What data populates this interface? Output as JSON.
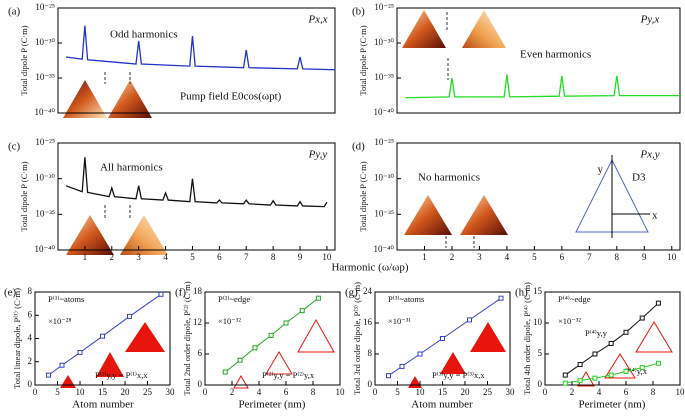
{
  "chart_data": [
    {
      "type": "line",
      "panel": "(a)",
      "title": "Px,x",
      "ylabel": "Total dipole P (C·m)",
      "log_y": true,
      "color": "#2233cc",
      "annotations": [
        "Odd harmonics",
        "Pump field E0cos(ωpt)"
      ],
      "xlim": [
        0,
        10.3
      ],
      "ylim": [
        1e-40,
        1e-25
      ],
      "yticks": [
        {
          "value": 1e-25,
          "label": "10⁻²⁵"
        },
        {
          "value": 1e-30,
          "label": "10⁻³⁰"
        },
        {
          "value": 1e-35,
          "label": "10⁻³⁵"
        },
        {
          "value": 1e-40,
          "label": "10⁻⁴⁰"
        }
      ],
      "x": [
        0.3,
        0.9,
        1,
        1.1,
        2.9,
        3,
        3.1,
        4.9,
        5,
        5.1,
        6.9,
        7,
        7.1,
        8.9,
        9,
        9.1,
        10.3
      ],
      "values": [
        1e-32,
        5e-33,
        3e-28,
        4e-33,
        1e-33,
        2e-30,
        1e-33,
        5e-34,
        1e-29,
        5e-34,
        3e-34,
        1e-31,
        3e-34,
        2e-34,
        1e-32,
        2e-34,
        1.5e-34
      ]
    },
    {
      "type": "line",
      "panel": "(b)",
      "title": "Py,x",
      "ylabel": "Total dipole P (C·m)",
      "log_y": true,
      "color": "#22dd22",
      "annotations": [
        "Even harmonics"
      ],
      "xlim": [
        0,
        10.3
      ],
      "ylim": [
        1e-40,
        1e-25
      ],
      "yticks": [
        {
          "value": 1e-25,
          "label": "10⁻²⁵"
        },
        {
          "value": 1e-30,
          "label": "10⁻³⁰"
        },
        {
          "value": 1e-35,
          "label": "10⁻³⁵"
        },
        {
          "value": 1e-40,
          "label": "10⁻⁴⁰"
        }
      ],
      "x": [
        0.3,
        1.9,
        2,
        2.1,
        3.9,
        4,
        4.1,
        5.9,
        6,
        6.1,
        7.9,
        8,
        8.1,
        10.3
      ],
      "values": [
        1.5e-38,
        2e-38,
        1e-35,
        2e-38,
        2e-38,
        3e-35,
        2e-38,
        2.5e-38,
        2e-35,
        2.5e-38,
        3e-38,
        2e-35,
        3e-38,
        3e-38
      ]
    },
    {
      "type": "line",
      "panel": "(c)",
      "title": "Py,y",
      "ylabel": "Total dipole P (C·m)",
      "xlabel": "Harmonic (ω/ωp)",
      "log_y": true,
      "color": "#111111",
      "annotations": [
        "All harmonics"
      ],
      "xlim": [
        0,
        10.3
      ],
      "ylim": [
        1e-40,
        1e-25
      ],
      "xticks": [
        1,
        2,
        3,
        4,
        5,
        6,
        7,
        8,
        9,
        10
      ],
      "yticks": [
        {
          "value": 1e-25,
          "label": "10⁻²⁵"
        },
        {
          "value": 1e-30,
          "label": "10⁻³⁰"
        },
        {
          "value": 1e-35,
          "label": "10⁻³⁵"
        },
        {
          "value": 1e-40,
          "label": "10⁻⁴⁰"
        }
      ],
      "x": [
        0.3,
        0.9,
        1,
        1.1,
        1.9,
        2,
        2.1,
        2.9,
        3,
        3.1,
        3.9,
        4,
        4.1,
        4.9,
        5,
        5.1,
        5.9,
        6,
        6.1,
        6.9,
        7,
        7.1,
        7.9,
        8,
        8.1,
        8.9,
        9,
        9.1,
        9.9,
        10
      ],
      "values": [
        1e-31,
        1.5e-32,
        1e-27,
        1.2e-32,
        3e-33,
        5e-32,
        3e-33,
        1.5e-33,
        1e-31,
        1.5e-33,
        1e-33,
        1e-32,
        1e-33,
        6e-34,
        1e-30,
        6e-34,
        4e-34,
        1e-33,
        4e-34,
        3e-34,
        1e-33,
        3e-34,
        2e-34,
        8e-34,
        2e-34,
        1.5e-34,
        6e-34,
        1.5e-34,
        1.2e-34,
        5e-34
      ]
    },
    {
      "type": "line",
      "panel": "(d)",
      "title": "Px,y",
      "ylabel": "Total dipole P (C·m)",
      "log_y": true,
      "annotations": [
        "No harmonics",
        "y",
        "x",
        "D3"
      ],
      "xlim": [
        0,
        10.3
      ],
      "ylim": [
        1e-40,
        1e-25
      ],
      "xticks": [
        1,
        2,
        3,
        4,
        5,
        6,
        7,
        8,
        9,
        10
      ],
      "yticks": [
        {
          "value": 1e-25,
          "label": "10⁻²⁵"
        },
        {
          "value": 1e-30,
          "label": "10⁻³⁰"
        },
        {
          "value": 1e-35,
          "label": "10⁻³⁵"
        },
        {
          "value": 1e-40,
          "label": "10⁻⁴⁰"
        }
      ]
    },
    {
      "type": "scatter",
      "panel": "(e)",
      "ylabel": "Total linear dipole, P⁽¹⁾ (C·m)",
      "xlabel": "Atom number",
      "annotations": [
        "P⁽¹⁾~atoms",
        "×10⁻²⁸",
        "P⁽¹⁾y,y = P⁽¹⁾x,x"
      ],
      "xlim": [
        0,
        30
      ],
      "ylim": [
        0,
        8
      ],
      "xticks": [
        0,
        5,
        10,
        15,
        20,
        25,
        30
      ],
      "yticks": [
        0,
        2,
        4,
        6,
        8
      ],
      "series": [
        {
          "color": "#3344cc",
          "x": [
            3,
            6,
            10,
            15,
            21,
            28
          ],
          "values": [
            0.85,
            1.7,
            2.8,
            4.2,
            5.9,
            7.8
          ]
        }
      ]
    },
    {
      "type": "scatter",
      "panel": "(f)",
      "ylabel": "Total 2nd order dipole, P⁽²⁾ (C·m)",
      "xlabel": "Perimeter (nm)",
      "annotations": [
        "P⁽²⁾~edge",
        "×10⁻³²",
        "P⁽²⁾y,y = P⁽²⁾y,x"
      ],
      "xlim": [
        0,
        10
      ],
      "ylim": [
        0,
        18
      ],
      "xticks": [
        0,
        2,
        4,
        6,
        8,
        10
      ],
      "yticks": [
        0,
        6,
        12,
        18
      ],
      "series": [
        {
          "color": "#22aa22",
          "x": [
            1.5,
            2.6,
            3.7,
            4.9,
            6,
            7.2,
            8.4
          ],
          "values": [
            2.5,
            4.8,
            7.2,
            9.6,
            12,
            14.4,
            16.8
          ]
        }
      ]
    },
    {
      "type": "scatter",
      "panel": "(g)",
      "ylabel": "Total 3rd order dipole, P⁽³⁾ (C·m)",
      "xlabel": "Atom number",
      "annotations": [
        "P⁽³⁾~atoms",
        "×10⁻³¹",
        "P⁽³⁾y,y = P⁽³⁾x,x"
      ],
      "xlim": [
        0,
        30
      ],
      "ylim": [
        0,
        24
      ],
      "xticks": [
        0,
        5,
        10,
        15,
        20,
        25,
        30
      ],
      "yticks": [
        0,
        8,
        16,
        24
      ],
      "series": [
        {
          "color": "#3344cc",
          "x": [
            3,
            6,
            10,
            15,
            21,
            28
          ],
          "values": [
            2.4,
            4.8,
            8,
            12,
            16.8,
            22.4
          ]
        }
      ]
    },
    {
      "type": "scatter",
      "panel": "(h)",
      "ylabel": "Total 4th order dipole, P⁽⁴⁾ (C·m)",
      "xlabel": "Perimeter (nm)",
      "annotations": [
        "P⁽⁴⁾~edge",
        "×10⁻³²",
        "P⁽⁴⁾y,y",
        "P⁽⁴⁾y,x"
      ],
      "xlim": [
        0,
        10
      ],
      "ylim": [
        0,
        15
      ],
      "xticks": [
        0,
        2,
        4,
        6,
        8,
        10
      ],
      "yticks": [
        0,
        5,
        10,
        15
      ],
      "series": [
        {
          "color": "#111111",
          "x": [
            1.5,
            2.6,
            3.7,
            4.9,
            6,
            7.2,
            8.4
          ],
          "values": [
            1.6,
            3.3,
            5,
            6.7,
            8.5,
            10.8,
            13.2
          ]
        },
        {
          "color": "#22cc22",
          "x": [
            1.5,
            2.6,
            3.7,
            4.9,
            6,
            7.2,
            8.4
          ],
          "values": [
            0.3,
            0.7,
            1.1,
            1.6,
            2.2,
            2.8,
            3.5
          ]
        }
      ]
    }
  ]
}
